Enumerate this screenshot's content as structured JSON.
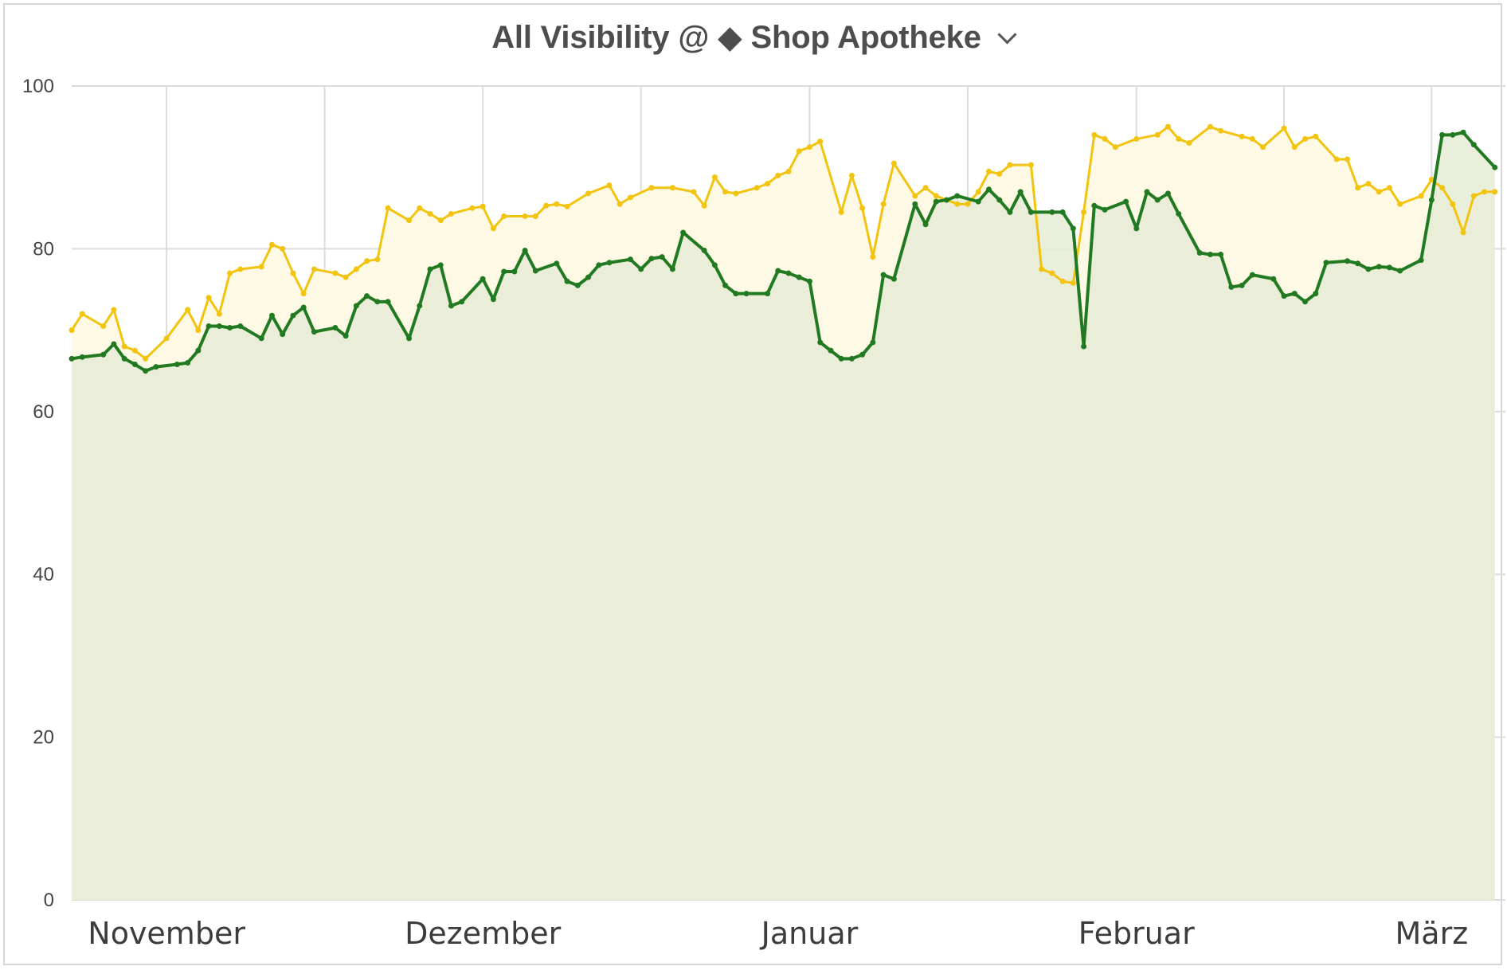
{
  "title": "All Visibility @ ◆ Shop Apotheke",
  "colors": {
    "yellow_line": "#f2c40f",
    "yellow_fill": "#fdf9e4",
    "green_line": "#217a21",
    "green_fill": "#e6ecd6",
    "grid": "#dcdcdc"
  },
  "chart_data": {
    "type": "area",
    "title": "All Visibility @ ◆ Shop Apotheke",
    "xlabel": "",
    "ylabel": "",
    "ylim": [
      0,
      100
    ],
    "yticks": [
      0,
      20,
      40,
      60,
      80,
      100
    ],
    "xlim": [
      "2018-10-23",
      "2019-03-08"
    ],
    "month_labels": [
      {
        "label": "November",
        "date": "2018-11-01"
      },
      {
        "label": "Dezember",
        "date": "2018-12-01"
      },
      {
        "label": "Januar",
        "date": "2019-01-01"
      },
      {
        "label": "Februar",
        "date": "2019-02-01"
      },
      {
        "label": "März",
        "date": "2019-03-01"
      }
    ],
    "grid": true,
    "legend": "none",
    "series": [
      {
        "color": "yellow",
        "points": [
          [
            "2018-10-23",
            70
          ],
          [
            "2018-10-24",
            72
          ],
          [
            "2018-10-26",
            70.5
          ],
          [
            "2018-10-27",
            72.5
          ],
          [
            "2018-10-28",
            68
          ],
          [
            "2018-10-29",
            67.5
          ],
          [
            "2018-10-30",
            66.5
          ],
          [
            "2018-11-01",
            69
          ],
          [
            "2018-11-03",
            72.5
          ],
          [
            "2018-11-04",
            70
          ],
          [
            "2018-11-05",
            74
          ],
          [
            "2018-11-06",
            72
          ],
          [
            "2018-11-07",
            77
          ],
          [
            "2018-11-08",
            77.5
          ],
          [
            "2018-11-10",
            77.8
          ],
          [
            "2018-11-11",
            80.5
          ],
          [
            "2018-11-12",
            80
          ],
          [
            "2018-11-13",
            77
          ],
          [
            "2018-11-14",
            74.5
          ],
          [
            "2018-11-15",
            77.5
          ],
          [
            "2018-11-17",
            77
          ],
          [
            "2018-11-18",
            76.5
          ],
          [
            "2018-11-19",
            77.5
          ],
          [
            "2018-11-20",
            78.5
          ],
          [
            "2018-11-21",
            78.7
          ],
          [
            "2018-11-22",
            85
          ],
          [
            "2018-11-24",
            83.5
          ],
          [
            "2018-11-25",
            85
          ],
          [
            "2018-11-26",
            84.3
          ],
          [
            "2018-11-27",
            83.5
          ],
          [
            "2018-11-28",
            84.3
          ],
          [
            "2018-11-30",
            85
          ],
          [
            "2018-12-01",
            85.2
          ],
          [
            "2018-12-02",
            82.5
          ],
          [
            "2018-12-03",
            84
          ],
          [
            "2018-12-05",
            84
          ],
          [
            "2018-12-06",
            84
          ],
          [
            "2018-12-07",
            85.3
          ],
          [
            "2018-12-08",
            85.5
          ],
          [
            "2018-12-09",
            85.2
          ],
          [
            "2018-12-11",
            86.8
          ],
          [
            "2018-12-13",
            87.8
          ],
          [
            "2018-12-14",
            85.5
          ],
          [
            "2018-12-15",
            86.3
          ],
          [
            "2018-12-17",
            87.5
          ],
          [
            "2018-12-19",
            87.5
          ],
          [
            "2018-12-21",
            87
          ],
          [
            "2018-12-22",
            85.3
          ],
          [
            "2018-12-23",
            88.8
          ],
          [
            "2018-12-24",
            87
          ],
          [
            "2018-12-25",
            86.8
          ],
          [
            "2018-12-27",
            87.5
          ],
          [
            "2018-12-28",
            88
          ],
          [
            "2018-12-29",
            89
          ],
          [
            "2018-12-30",
            89.5
          ],
          [
            "2018-12-31",
            92
          ],
          [
            "2019-01-01",
            92.5
          ],
          [
            "2019-01-02",
            93.2
          ],
          [
            "2019-01-04",
            84.5
          ],
          [
            "2019-01-05",
            89
          ],
          [
            "2019-01-06",
            85
          ],
          [
            "2019-01-07",
            79
          ],
          [
            "2019-01-08",
            85.5
          ],
          [
            "2019-01-09",
            90.5
          ],
          [
            "2019-01-11",
            86.5
          ],
          [
            "2019-01-12",
            87.5
          ],
          [
            "2019-01-13",
            86.5
          ],
          [
            "2019-01-14",
            86
          ],
          [
            "2019-01-15",
            85.5
          ],
          [
            "2019-01-16",
            85.5
          ],
          [
            "2019-01-17",
            87
          ],
          [
            "2019-01-18",
            89.5
          ],
          [
            "2019-01-19",
            89.2
          ],
          [
            "2019-01-20",
            90.3
          ],
          [
            "2019-01-22",
            90.3
          ],
          [
            "2019-01-23",
            77.5
          ],
          [
            "2019-01-24",
            77
          ],
          [
            "2019-01-25",
            76
          ],
          [
            "2019-01-26",
            75.8
          ],
          [
            "2019-01-27",
            84.5
          ],
          [
            "2019-01-28",
            94
          ],
          [
            "2019-01-29",
            93.5
          ],
          [
            "2019-01-30",
            92.5
          ],
          [
            "2019-02-01",
            93.5
          ],
          [
            "2019-02-03",
            94
          ],
          [
            "2019-02-04",
            95
          ],
          [
            "2019-02-05",
            93.5
          ],
          [
            "2019-02-06",
            93
          ],
          [
            "2019-02-08",
            95
          ],
          [
            "2019-02-09",
            94.5
          ],
          [
            "2019-02-11",
            93.8
          ],
          [
            "2019-02-12",
            93.5
          ],
          [
            "2019-02-13",
            92.5
          ],
          [
            "2019-02-15",
            94.8
          ],
          [
            "2019-02-16",
            92.5
          ],
          [
            "2019-02-17",
            93.5
          ],
          [
            "2019-02-18",
            93.8
          ],
          [
            "2019-02-20",
            91
          ],
          [
            "2019-02-21",
            91
          ],
          [
            "2019-02-22",
            87.5
          ],
          [
            "2019-02-23",
            88
          ],
          [
            "2019-02-24",
            87
          ],
          [
            "2019-02-25",
            87.5
          ],
          [
            "2019-02-26",
            85.5
          ],
          [
            "2019-02-28",
            86.5
          ],
          [
            "2019-03-01",
            88.5
          ],
          [
            "2019-03-02",
            87.5
          ],
          [
            "2019-03-03",
            85.5
          ],
          [
            "2019-03-04",
            82
          ],
          [
            "2019-03-05",
            86.5
          ],
          [
            "2019-03-06",
            87
          ],
          [
            "2019-03-07",
            87
          ]
        ]
      },
      {
        "color": "green",
        "points": [
          [
            "2018-10-23",
            66.5
          ],
          [
            "2018-10-24",
            66.7
          ],
          [
            "2018-10-26",
            67
          ],
          [
            "2018-10-27",
            68.3
          ],
          [
            "2018-10-28",
            66.5
          ],
          [
            "2018-10-29",
            65.8
          ],
          [
            "2018-10-30",
            65
          ],
          [
            "2018-10-31",
            65.5
          ],
          [
            "2018-11-02",
            65.8
          ],
          [
            "2018-11-03",
            66
          ],
          [
            "2018-11-04",
            67.5
          ],
          [
            "2018-11-05",
            70.5
          ],
          [
            "2018-11-06",
            70.5
          ],
          [
            "2018-11-07",
            70.3
          ],
          [
            "2018-11-08",
            70.5
          ],
          [
            "2018-11-10",
            69
          ],
          [
            "2018-11-11",
            71.8
          ],
          [
            "2018-11-12",
            69.5
          ],
          [
            "2018-11-13",
            71.8
          ],
          [
            "2018-11-14",
            72.8
          ],
          [
            "2018-11-15",
            69.8
          ],
          [
            "2018-11-17",
            70.3
          ],
          [
            "2018-11-18",
            69.3
          ],
          [
            "2018-11-19",
            73
          ],
          [
            "2018-11-20",
            74.2
          ],
          [
            "2018-11-21",
            73.5
          ],
          [
            "2018-11-22",
            73.5
          ],
          [
            "2018-11-24",
            69
          ],
          [
            "2018-11-25",
            73
          ],
          [
            "2018-11-26",
            77.5
          ],
          [
            "2018-11-27",
            78
          ],
          [
            "2018-11-28",
            73
          ],
          [
            "2018-11-29",
            73.5
          ],
          [
            "2018-12-01",
            76.3
          ],
          [
            "2018-12-02",
            73.8
          ],
          [
            "2018-12-03",
            77.2
          ],
          [
            "2018-12-04",
            77.2
          ],
          [
            "2018-12-05",
            79.8
          ],
          [
            "2018-12-06",
            77.3
          ],
          [
            "2018-12-08",
            78.2
          ],
          [
            "2018-12-09",
            76
          ],
          [
            "2018-12-10",
            75.5
          ],
          [
            "2018-12-11",
            76.5
          ],
          [
            "2018-12-12",
            78
          ],
          [
            "2018-12-13",
            78.3
          ],
          [
            "2018-12-15",
            78.7
          ],
          [
            "2018-12-16",
            77.5
          ],
          [
            "2018-12-17",
            78.8
          ],
          [
            "2018-12-18",
            79
          ],
          [
            "2018-12-19",
            77.5
          ],
          [
            "2018-12-20",
            82
          ],
          [
            "2018-12-22",
            79.8
          ],
          [
            "2018-12-23",
            78
          ],
          [
            "2018-12-24",
            75.5
          ],
          [
            "2018-12-25",
            74.5
          ],
          [
            "2018-12-26",
            74.5
          ],
          [
            "2018-12-28",
            74.5
          ],
          [
            "2018-12-29",
            77.3
          ],
          [
            "2018-12-30",
            77
          ],
          [
            "2018-12-31",
            76.5
          ],
          [
            "2019-01-01",
            76
          ],
          [
            "2019-01-02",
            68.5
          ],
          [
            "2019-01-03",
            67.5
          ],
          [
            "2019-01-04",
            66.5
          ],
          [
            "2019-01-05",
            66.5
          ],
          [
            "2019-01-06",
            67
          ],
          [
            "2019-01-07",
            68.5
          ],
          [
            "2019-01-08",
            76.8
          ],
          [
            "2019-01-09",
            76.3
          ],
          [
            "2019-01-11",
            85.5
          ],
          [
            "2019-01-12",
            83
          ],
          [
            "2019-01-13",
            85.8
          ],
          [
            "2019-01-14",
            86
          ],
          [
            "2019-01-15",
            86.5
          ],
          [
            "2019-01-17",
            85.8
          ],
          [
            "2019-01-18",
            87.3
          ],
          [
            "2019-01-19",
            86
          ],
          [
            "2019-01-20",
            84.5
          ],
          [
            "2019-01-21",
            87
          ],
          [
            "2019-01-22",
            84.5
          ],
          [
            "2019-01-24",
            84.5
          ],
          [
            "2019-01-25",
            84.5
          ],
          [
            "2019-01-26",
            82.5
          ],
          [
            "2019-01-27",
            68
          ],
          [
            "2019-01-28",
            85.3
          ],
          [
            "2019-01-29",
            84.8
          ],
          [
            "2019-01-31",
            85.8
          ],
          [
            "2019-02-01",
            82.5
          ],
          [
            "2019-02-02",
            87
          ],
          [
            "2019-02-03",
            86
          ],
          [
            "2019-02-04",
            86.8
          ],
          [
            "2019-02-05",
            84.3
          ],
          [
            "2019-02-07",
            79.5
          ],
          [
            "2019-02-08",
            79.3
          ],
          [
            "2019-02-09",
            79.3
          ],
          [
            "2019-02-10",
            75.3
          ],
          [
            "2019-02-11",
            75.5
          ],
          [
            "2019-02-12",
            76.8
          ],
          [
            "2019-02-14",
            76.3
          ],
          [
            "2019-02-15",
            74.2
          ],
          [
            "2019-02-16",
            74.5
          ],
          [
            "2019-02-17",
            73.5
          ],
          [
            "2019-02-18",
            74.5
          ],
          [
            "2019-02-19",
            78.3
          ],
          [
            "2019-02-21",
            78.5
          ],
          [
            "2019-02-22",
            78.2
          ],
          [
            "2019-02-23",
            77.5
          ],
          [
            "2019-02-24",
            77.8
          ],
          [
            "2019-02-25",
            77.7
          ],
          [
            "2019-02-26",
            77.3
          ],
          [
            "2019-02-28",
            78.6
          ],
          [
            "2019-03-01",
            86
          ],
          [
            "2019-03-02",
            94
          ],
          [
            "2019-03-03",
            94
          ],
          [
            "2019-03-04",
            94.3
          ],
          [
            "2019-03-05",
            92.8
          ],
          [
            "2019-03-07",
            90
          ]
        ]
      }
    ]
  }
}
